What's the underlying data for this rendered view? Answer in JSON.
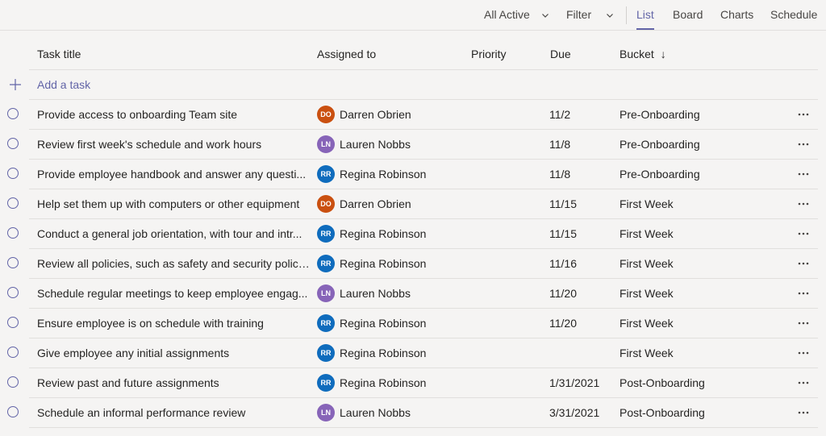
{
  "toolbar": {
    "filter_scope": "All Active",
    "filter_label": "Filter",
    "tabs": [
      {
        "label": "List",
        "active": true
      },
      {
        "label": "Board",
        "active": false
      },
      {
        "label": "Charts",
        "active": false
      },
      {
        "label": "Schedule",
        "active": false
      }
    ]
  },
  "columns": {
    "title": "Task title",
    "assigned": "Assigned to",
    "priority": "Priority",
    "due": "Due",
    "bucket": "Bucket",
    "sort_indicator": "↓"
  },
  "add_task_label": "Add a task",
  "colors": {
    "accent": "#6264a7",
    "avatar_do": "#ca5010",
    "avatar_ln": "#8764b8",
    "avatar_rr": "#0f6cbd"
  },
  "tasks": [
    {
      "title": "Provide access to onboarding Team site",
      "initials": "DO",
      "assignee": "Darren Obrien",
      "due": "11/2",
      "bucket": "Pre-Onboarding",
      "avatar_color": "#ca5010"
    },
    {
      "title": "Review first week's schedule and work hours",
      "initials": "LN",
      "assignee": "Lauren Nobbs",
      "due": "11/8",
      "bucket": "Pre-Onboarding",
      "avatar_color": "#8764b8"
    },
    {
      "title": "Provide employee handbook and answer any questi...",
      "initials": "RR",
      "assignee": "Regina Robinson",
      "due": "11/8",
      "bucket": "Pre-Onboarding",
      "avatar_color": "#0f6cbd"
    },
    {
      "title": "Help set them up with computers or other equipment",
      "initials": "DO",
      "assignee": "Darren Obrien",
      "due": "11/15",
      "bucket": "First Week",
      "avatar_color": "#ca5010"
    },
    {
      "title": "Conduct a general job orientation, with tour and intr...",
      "initials": "RR",
      "assignee": "Regina Robinson",
      "due": "11/15",
      "bucket": "First Week",
      "avatar_color": "#0f6cbd"
    },
    {
      "title": "Review all policies, such as safety and security policies",
      "initials": "RR",
      "assignee": "Regina Robinson",
      "due": "11/16",
      "bucket": "First Week",
      "avatar_color": "#0f6cbd"
    },
    {
      "title": "Schedule regular meetings to keep employee engag...",
      "initials": "LN",
      "assignee": "Lauren Nobbs",
      "due": "11/20",
      "bucket": "First Week",
      "avatar_color": "#8764b8"
    },
    {
      "title": "Ensure employee is on schedule with training",
      "initials": "RR",
      "assignee": "Regina Robinson",
      "due": "11/20",
      "bucket": "First Week",
      "avatar_color": "#0f6cbd"
    },
    {
      "title": "Give employee any initial assignments",
      "initials": "RR",
      "assignee": "Regina Robinson",
      "due": "",
      "bucket": "First Week",
      "avatar_color": "#0f6cbd"
    },
    {
      "title": "Review past and future assignments",
      "initials": "RR",
      "assignee": "Regina Robinson",
      "due": "1/31/2021",
      "bucket": "Post-Onboarding",
      "avatar_color": "#0f6cbd"
    },
    {
      "title": "Schedule an informal performance review",
      "initials": "LN",
      "assignee": "Lauren Nobbs",
      "due": "3/31/2021",
      "bucket": "Post-Onboarding",
      "avatar_color": "#8764b8"
    }
  ]
}
